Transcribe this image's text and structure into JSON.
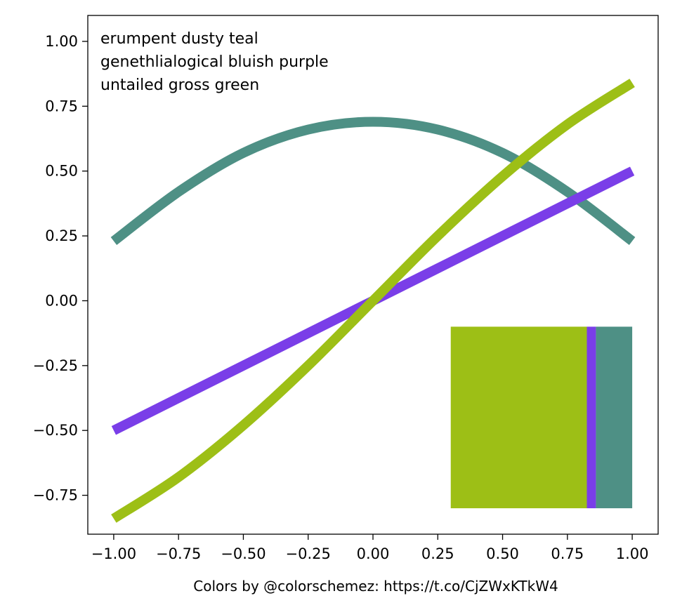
{
  "chart_data": {
    "type": "line",
    "title": "",
    "xlabel": "Colors by @colorschemez: https://t.co/CjZWxKTkW4",
    "ylabel": "",
    "xlim": [
      -1.1,
      1.1
    ],
    "ylim": [
      -0.9,
      1.1
    ],
    "x_ticks": [
      -1.0,
      -0.75,
      -0.5,
      -0.25,
      0.0,
      0.25,
      0.5,
      0.75,
      1.0
    ],
    "x_tick_labels": [
      "−1.00",
      "−0.75",
      "−0.50",
      "−0.25",
      "0.00",
      "0.25",
      "0.50",
      "0.75",
      "1.00"
    ],
    "y_ticks": [
      -0.75,
      -0.5,
      -0.25,
      0.0,
      0.25,
      0.5,
      0.75,
      1.0
    ],
    "y_tick_labels": [
      "−0.75",
      "−0.50",
      "−0.25",
      "0.00",
      "0.25",
      "0.50",
      "0.75",
      "1.00"
    ],
    "grid": false,
    "legend_placement": "top-left",
    "legend_lines": [
      "erumpent dusty teal",
      "genethlialogical bluish purple",
      "untailed gross green"
    ],
    "series": [
      {
        "color": "#4e9085",
        "x": [
          -1.0,
          -0.75,
          -0.5,
          -0.25,
          0.0,
          0.25,
          0.5,
          0.75,
          1.0
        ],
        "y": [
          0.23,
          0.42,
          0.57,
          0.66,
          0.69,
          0.66,
          0.57,
          0.42,
          0.23
        ]
      },
      {
        "color": "#7a3ee8",
        "x": [
          -1.0,
          1.0
        ],
        "y": [
          -0.5,
          0.5
        ]
      },
      {
        "color": "#9dbf16",
        "x": [
          -1.0,
          -0.75,
          -0.5,
          -0.25,
          0.0,
          0.25,
          0.5,
          0.75,
          1.0
        ],
        "y": [
          -0.84,
          -0.68,
          -0.48,
          -0.25,
          0.0,
          0.25,
          0.48,
          0.68,
          0.84
        ]
      }
    ],
    "swatch": {
      "x_range": [
        0.3,
        1.0
      ],
      "y_range": [
        -0.8,
        -0.1
      ],
      "segments": [
        {
          "color": "#9dbf16",
          "x": [
            0.3,
            0.825
          ]
        },
        {
          "color": "#7a3ee8",
          "x": [
            0.825,
            0.86
          ]
        },
        {
          "color": "#4e9085",
          "x": [
            0.86,
            1.0
          ]
        }
      ]
    }
  }
}
